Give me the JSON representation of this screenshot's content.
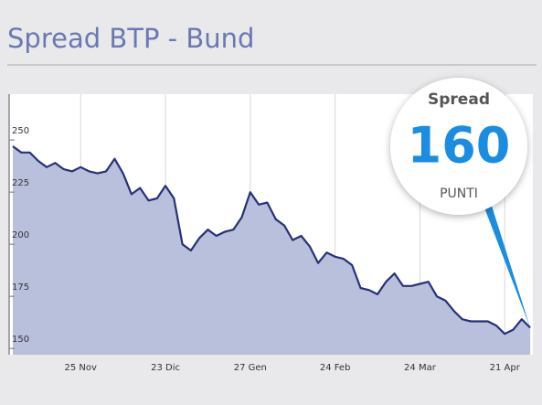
{
  "chart_data": {
    "type": "area",
    "title": "Spread BTP - Bund",
    "categories": [
      null,
      null,
      null,
      null,
      null,
      null,
      null,
      null,
      "25 Nov",
      null,
      null,
      null,
      null,
      null,
      null,
      null,
      null,
      null,
      "23 Dic",
      null,
      null,
      null,
      null,
      null,
      null,
      null,
      null,
      null,
      "27 Gen",
      null,
      null,
      null,
      null,
      null,
      null,
      null,
      null,
      null,
      "24 Feb",
      null,
      null,
      null,
      null,
      null,
      null,
      null,
      null,
      null,
      "24 Mar",
      null,
      null,
      null,
      null,
      null,
      null,
      null,
      null,
      null,
      "21 Apr",
      null,
      null,
      null
    ],
    "series": [
      {
        "name": "Spread",
        "color": "#27307c",
        "fill": "#b9c0dc",
        "values": [
          247,
          244,
          244,
          240,
          237,
          239,
          236,
          235,
          237,
          235,
          234,
          235,
          241,
          234,
          224,
          227,
          221,
          222,
          228,
          222,
          200,
          197,
          203,
          207,
          204,
          206,
          207,
          213,
          225,
          219,
          220,
          212,
          209,
          202,
          204,
          199,
          191,
          196,
          194,
          193,
          190,
          179,
          178,
          176,
          182,
          186,
          180,
          180,
          181,
          182,
          175,
          173,
          168,
          164,
          163,
          163,
          163,
          161,
          157,
          159,
          164,
          160
        ]
      }
    ],
    "ylim": [
      147,
      272
    ],
    "yticks": [
      150,
      175,
      200,
      225,
      250
    ],
    "grid": true,
    "callout": {
      "title": "Spread",
      "value": 160,
      "unit": "PUNTI",
      "color": "#1a8de0"
    }
  }
}
